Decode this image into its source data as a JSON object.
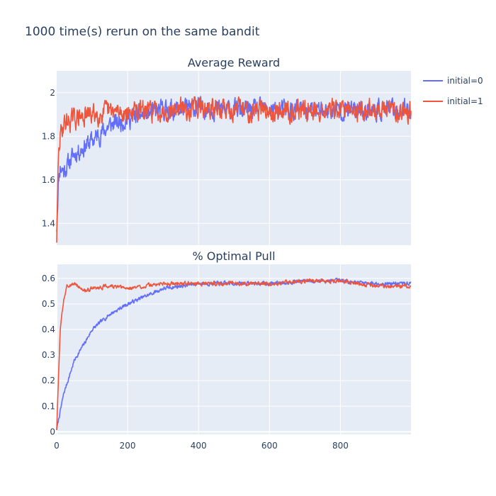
{
  "figure": {
    "title": "1000 time(s) rerun on the same bandit",
    "legend_position": "top-right",
    "colors": {
      "initial=0": "#636efa",
      "initial=1": "#ef553b",
      "plot_bg": "#e5ecf6"
    }
  },
  "chart_data": [
    {
      "type": "line",
      "title": "Average Reward",
      "xlabel": "",
      "ylabel": "",
      "xlim": [
        0,
        999
      ],
      "ylim": [
        1.3,
        2.1
      ],
      "x_ticks": [
        200,
        400,
        600,
        800
      ],
      "y_ticks": [
        1.4,
        1.6,
        1.8,
        2
      ],
      "y_tick_labels": [
        "1.4",
        "1.6",
        "1.8",
        "2"
      ],
      "x_tick_labels_shown": false,
      "grid": true,
      "series": [
        {
          "name": "initial=0",
          "color": "#636efa",
          "curve": {
            "start": 1.38,
            "end": 1.91,
            "tau": 70,
            "noise": 0.035,
            "seed": 11
          },
          "anchors": [
            [
              0,
              1.38
            ],
            [
              5,
              1.6
            ],
            [
              10,
              1.66
            ],
            [
              20,
              1.64
            ],
            [
              50,
              1.72
            ],
            [
              100,
              1.78
            ],
            [
              150,
              1.85
            ],
            [
              200,
              1.88
            ],
            [
              300,
              1.92
            ],
            [
              400,
              1.93
            ],
            [
              500,
              1.92
            ],
            [
              600,
              1.92
            ],
            [
              700,
              1.92
            ],
            [
              800,
              1.92
            ],
            [
              900,
              1.92
            ],
            [
              999,
              1.92
            ]
          ]
        },
        {
          "name": "initial=1",
          "color": "#ef553b",
          "curve": {
            "start": 1.33,
            "end": 1.92,
            "tau": 3,
            "noise": 0.037,
            "seed": 29
          },
          "anchors": [
            [
              0,
              1.33
            ],
            [
              5,
              1.7
            ],
            [
              10,
              1.8
            ],
            [
              20,
              1.86
            ],
            [
              50,
              1.88
            ],
            [
              100,
              1.9
            ],
            [
              150,
              1.91
            ],
            [
              200,
              1.91
            ],
            [
              300,
              1.92
            ],
            [
              400,
              1.93
            ],
            [
              500,
              1.92
            ],
            [
              600,
              1.92
            ],
            [
              700,
              1.92
            ],
            [
              800,
              1.92
            ],
            [
              900,
              1.92
            ],
            [
              999,
              1.92
            ]
          ]
        }
      ]
    },
    {
      "type": "line",
      "title": "% Optimal Pull",
      "xlabel": "",
      "ylabel": "",
      "xlim": [
        0,
        999
      ],
      "ylim": [
        -0.01,
        0.655
      ],
      "x_ticks": [
        0,
        200,
        400,
        600,
        800
      ],
      "x_tick_labels": [
        "0",
        "200",
        "400",
        "600",
        "800"
      ],
      "y_ticks": [
        0,
        0.1,
        0.2,
        0.3,
        0.4,
        0.5,
        0.6
      ],
      "y_tick_labels": [
        "0",
        "0.1",
        "0.2",
        "0.3",
        "0.4",
        "0.5",
        "0.6"
      ],
      "grid": true,
      "series": [
        {
          "name": "initial=0",
          "color": "#636efa",
          "curve": {
            "start": 0.01,
            "end": 0.58,
            "tau": 95,
            "noise": 0.006,
            "seed": 7
          },
          "anchors": [
            [
              0,
              0.01
            ],
            [
              20,
              0.15
            ],
            [
              50,
              0.28
            ],
            [
              80,
              0.35
            ],
            [
              100,
              0.4
            ],
            [
              150,
              0.46
            ],
            [
              200,
              0.5
            ],
            [
              250,
              0.53
            ],
            [
              300,
              0.56
            ],
            [
              350,
              0.57
            ],
            [
              400,
              0.58
            ],
            [
              500,
              0.58
            ],
            [
              600,
              0.58
            ],
            [
              700,
              0.59
            ],
            [
              800,
              0.59
            ],
            [
              900,
              0.58
            ],
            [
              999,
              0.58
            ]
          ]
        },
        {
          "name": "initial=1",
          "color": "#ef553b",
          "curve": {
            "start": 0.01,
            "end": 0.57,
            "tau": 7,
            "noise": 0.006,
            "seed": 3
          },
          "anchors": [
            [
              0,
              0.01
            ],
            [
              10,
              0.4
            ],
            [
              20,
              0.52
            ],
            [
              30,
              0.57
            ],
            [
              50,
              0.58
            ],
            [
              80,
              0.55
            ],
            [
              100,
              0.56
            ],
            [
              150,
              0.57
            ],
            [
              200,
              0.56
            ],
            [
              250,
              0.57
            ],
            [
              300,
              0.58
            ],
            [
              400,
              0.58
            ],
            [
              500,
              0.58
            ],
            [
              600,
              0.58
            ],
            [
              700,
              0.59
            ],
            [
              800,
              0.59
            ],
            [
              900,
              0.57
            ],
            [
              999,
              0.57
            ]
          ]
        }
      ]
    }
  ]
}
